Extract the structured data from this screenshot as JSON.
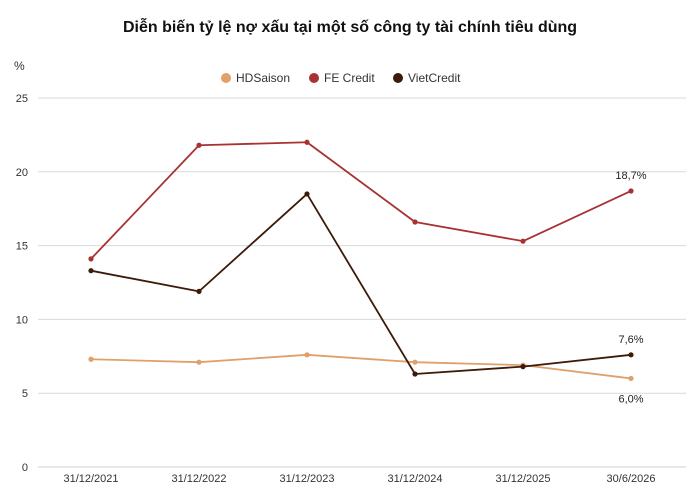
{
  "chart_data": {
    "type": "line",
    "title": "Diễn biến tỷ lệ nợ xấu tại một số công ty tài chính tiêu dùng",
    "ylabel": "%",
    "ylim": [
      0,
      25
    ],
    "yticks": [
      0,
      5,
      10,
      15,
      20,
      25
    ],
    "grid": true,
    "legend_position": "top-center",
    "categories": [
      "31/12/2021",
      "31/12/2022",
      "31/12/2023",
      "31/12/2024",
      "31/12/2025",
      "30/6/2026"
    ],
    "series": [
      {
        "name": "HDSaison",
        "color": "#e0a06a",
        "values": [
          7.3,
          7.1,
          7.6,
          7.1,
          6.9,
          6.0
        ],
        "end_label": "6,0%",
        "label_placement": "below"
      },
      {
        "name": "FE Credit",
        "color": "#a83232",
        "values": [
          14.1,
          21.8,
          22.0,
          16.6,
          15.3,
          18.7
        ],
        "end_label": "18,7%",
        "label_placement": "above"
      },
      {
        "name": "VietCredit",
        "color": "#3d1a0a",
        "values": [
          13.3,
          11.9,
          18.5,
          6.3,
          6.8,
          7.6
        ],
        "end_label": "7,6%",
        "label_placement": "above"
      }
    ]
  }
}
